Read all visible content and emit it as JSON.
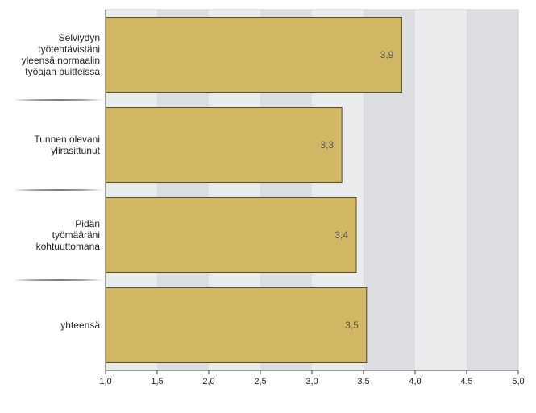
{
  "chart_data": {
    "type": "bar",
    "orientation": "horizontal",
    "categories": [
      "Selviydyn työtehtävistäni yleensä normaalin työajan puitteissa",
      "Tunnen olevani ylirasittunut",
      "Pidän työmääräni kohtuuttomana",
      "yhteensä"
    ],
    "category_lines": [
      [
        "Selviydyn",
        "työtehtävistäni",
        "yleensä normaalin",
        "työajan puitteissa"
      ],
      [
        "Tunnen olevani",
        "ylirasittunut"
      ],
      [
        "Pidän",
        "työmääräni",
        "kohtuuttomana"
      ],
      [
        "yhteensä"
      ]
    ],
    "values": [
      3.87,
      3.29,
      3.43,
      3.53
    ],
    "data_labels": [
      "3,9",
      "3,3",
      "3,4",
      "3,5"
    ],
    "xlim": [
      1.0,
      5.0
    ],
    "xticks": [
      1.0,
      1.5,
      2.0,
      2.5,
      3.0,
      3.5,
      4.0,
      4.5,
      5.0
    ],
    "xtick_labels": [
      "1,0",
      "1,5",
      "2,0",
      "2,5",
      "3,0",
      "3,5",
      "4,0",
      "4,5",
      "5,0"
    ],
    "title": "",
    "xlabel": "",
    "ylabel": "",
    "grid": "alternating vertical bands",
    "legend": "none",
    "colors": {
      "bar_fill": "#d2b865",
      "bar_stroke": "#5a4e2a",
      "band_light": "#e9ebed",
      "band_dark": "#dcdee1",
      "axis": "#444444"
    }
  }
}
